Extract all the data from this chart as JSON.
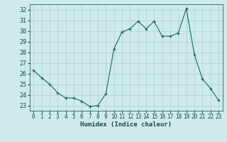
{
  "x": [
    0,
    1,
    2,
    3,
    4,
    5,
    6,
    7,
    8,
    9,
    10,
    11,
    12,
    13,
    14,
    15,
    16,
    17,
    18,
    19,
    20,
    21,
    22,
    23
  ],
  "y": [
    26.3,
    25.6,
    25.0,
    24.2,
    23.7,
    23.7,
    23.4,
    22.9,
    23.0,
    24.1,
    28.3,
    29.9,
    30.2,
    30.9,
    30.2,
    30.9,
    29.5,
    29.5,
    29.8,
    32.1,
    27.8,
    25.5,
    24.6,
    23.5
  ],
  "line_color": "#1a6b5a",
  "marker_color": "#1a6b5a",
  "bg_color": "#ceeaea",
  "grid_color": "#aed0d0",
  "xlabel": "Humidex (Indice chaleur)",
  "ylim": [
    22.5,
    32.5
  ],
  "xlim": [
    -0.5,
    23.5
  ],
  "yticks": [
    23,
    24,
    25,
    26,
    27,
    28,
    29,
    30,
    31,
    32
  ],
  "xticks": [
    0,
    1,
    2,
    3,
    4,
    5,
    6,
    7,
    8,
    9,
    10,
    11,
    12,
    13,
    14,
    15,
    16,
    17,
    18,
    19,
    20,
    21,
    22,
    23
  ]
}
